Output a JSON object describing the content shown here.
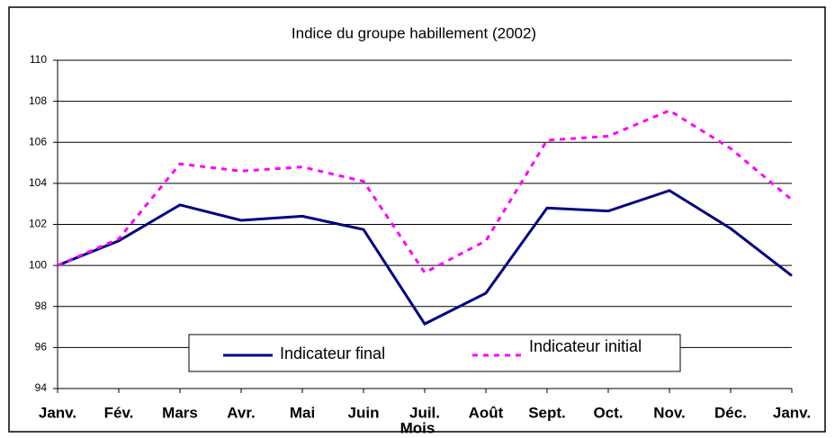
{
  "chart_data": {
    "type": "line",
    "title": "Indice du groupe habillement (2002)",
    "xlabel": "Mois",
    "categories": [
      "Janv.",
      "Fév.",
      "Mars",
      "Avr.",
      "Mai",
      "Juin",
      "Juil.",
      "Août",
      "Sept.",
      "Oct.",
      "Nov.",
      "Déc.",
      "Janv."
    ],
    "series": [
      {
        "name": "Indicateur final",
        "color": "#000080",
        "dash": false,
        "values": [
          100,
          101.2,
          102.95,
          102.2,
          102.4,
          101.75,
          97.15,
          98.65,
          102.8,
          102.65,
          103.65,
          101.8,
          99.5
        ]
      },
      {
        "name": "Indicateur initial",
        "color": "#ff00ff",
        "dash": true,
        "values": [
          100,
          101.3,
          104.95,
          104.6,
          104.8,
          104.1,
          99.65,
          101.2,
          106.1,
          106.3,
          107.55,
          105.7,
          103.2
        ]
      }
    ],
    "ylim": [
      94,
      110
    ],
    "yticks": [
      94,
      96,
      98,
      100,
      102,
      104,
      106,
      108,
      110
    ],
    "grid": true
  }
}
